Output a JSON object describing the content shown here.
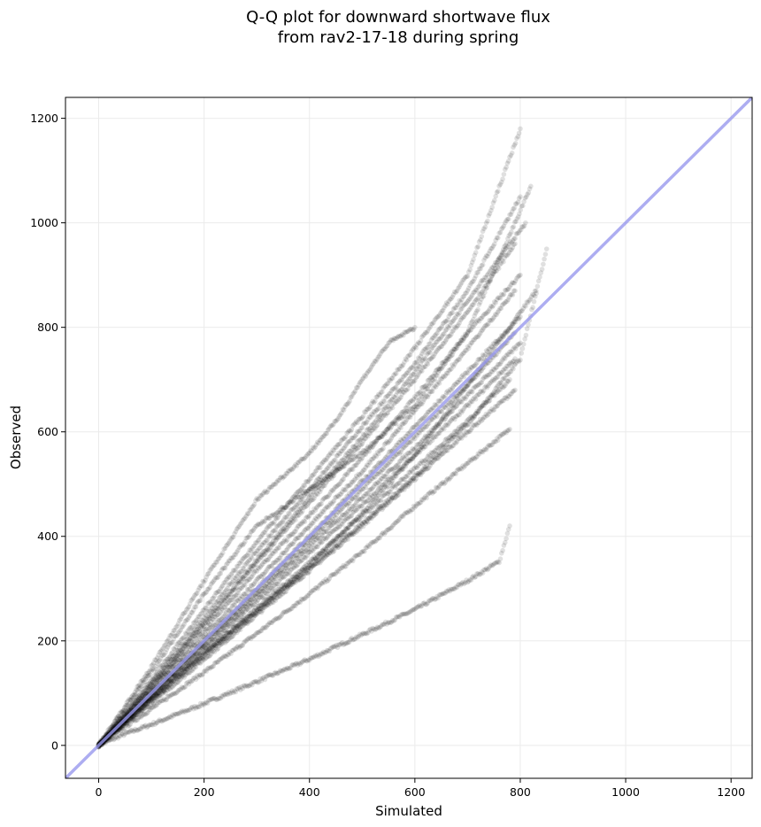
{
  "chart_data": {
    "type": "scatter",
    "title_line1": "Q-Q plot for downward shortwave flux",
    "title_line2": "from rav2-17-18 during spring",
    "xlabel": "Simulated",
    "ylabel": "Observed",
    "xlim": [
      -63,
      1240
    ],
    "ylim": [
      -63,
      1240
    ],
    "xticks": [
      0,
      200,
      400,
      600,
      800,
      1000,
      1200
    ],
    "yticks": [
      0,
      200,
      400,
      600,
      800,
      1000,
      1200
    ],
    "grid": true,
    "point_color": "#000000",
    "point_opacity": 0.12,
    "reference_line": {
      "from": [
        -63,
        -63
      ],
      "to": [
        1240,
        1240
      ],
      "color": "#9999ee"
    },
    "series": [
      {
        "values": [
          [
            0,
            0
          ],
          [
            50,
            22
          ],
          [
            100,
            40
          ],
          [
            200,
            80
          ],
          [
            300,
            122
          ],
          [
            400,
            165
          ],
          [
            500,
            212
          ],
          [
            600,
            260
          ],
          [
            700,
            315
          ],
          [
            760,
            352
          ],
          [
            780,
            420
          ]
        ]
      },
      {
        "values": [
          [
            0,
            0
          ],
          [
            100,
            70
          ],
          [
            200,
            140
          ],
          [
            300,
            214
          ],
          [
            400,
            290
          ],
          [
            500,
            370
          ],
          [
            600,
            458
          ],
          [
            700,
            540
          ],
          [
            780,
            605
          ]
        ]
      },
      {
        "values": [
          [
            0,
            0
          ],
          [
            100,
            80
          ],
          [
            200,
            165
          ],
          [
            300,
            250
          ],
          [
            400,
            335
          ],
          [
            500,
            420
          ],
          [
            600,
            510
          ],
          [
            700,
            600
          ],
          [
            790,
            680
          ]
        ]
      },
      {
        "values": [
          [
            0,
            0
          ],
          [
            100,
            85
          ],
          [
            200,
            175
          ],
          [
            300,
            262
          ],
          [
            400,
            350
          ],
          [
            500,
            440
          ],
          [
            600,
            530
          ],
          [
            700,
            620
          ],
          [
            780,
            700
          ]
        ]
      },
      {
        "values": [
          [
            0,
            0
          ],
          [
            100,
            90
          ],
          [
            200,
            185
          ],
          [
            300,
            275
          ],
          [
            400,
            368
          ],
          [
            500,
            460
          ],
          [
            600,
            555
          ],
          [
            700,
            650
          ],
          [
            790,
            740
          ]
        ]
      },
      {
        "values": [
          [
            0,
            0
          ],
          [
            100,
            95
          ],
          [
            200,
            190
          ],
          [
            300,
            285
          ],
          [
            400,
            380
          ],
          [
            500,
            475
          ],
          [
            600,
            570
          ],
          [
            700,
            670
          ],
          [
            800,
            770
          ]
        ]
      },
      {
        "values": [
          [
            0,
            0
          ],
          [
            100,
            98
          ],
          [
            200,
            196
          ],
          [
            300,
            292
          ],
          [
            400,
            390
          ],
          [
            500,
            490
          ],
          [
            600,
            590
          ],
          [
            700,
            690
          ],
          [
            790,
            790
          ]
        ]
      },
      {
        "values": [
          [
            0,
            0
          ],
          [
            100,
            100
          ],
          [
            200,
            200
          ],
          [
            300,
            300
          ],
          [
            400,
            400
          ],
          [
            500,
            505
          ],
          [
            600,
            610
          ],
          [
            700,
            715
          ],
          [
            800,
            820
          ]
        ]
      },
      {
        "values": [
          [
            0,
            0
          ],
          [
            100,
            105
          ],
          [
            200,
            210
          ],
          [
            300,
            315
          ],
          [
            400,
            420
          ],
          [
            500,
            525
          ],
          [
            600,
            640
          ],
          [
            700,
            760
          ],
          [
            790,
            870
          ]
        ]
      },
      {
        "values": [
          [
            0,
            0
          ],
          [
            100,
            108
          ],
          [
            200,
            220
          ],
          [
            300,
            335
          ],
          [
            400,
            440
          ],
          [
            500,
            550
          ],
          [
            600,
            665
          ],
          [
            700,
            790
          ],
          [
            800,
            900
          ]
        ]
      },
      {
        "values": [
          [
            0,
            0
          ],
          [
            100,
            112
          ],
          [
            200,
            230
          ],
          [
            300,
            350
          ],
          [
            400,
            465
          ],
          [
            500,
            580
          ],
          [
            600,
            700
          ],
          [
            700,
            830
          ],
          [
            790,
            960
          ]
        ]
      },
      {
        "values": [
          [
            0,
            0
          ],
          [
            100,
            118
          ],
          [
            200,
            245
          ],
          [
            300,
            372
          ],
          [
            400,
            490
          ],
          [
            500,
            610
          ],
          [
            600,
            730
          ],
          [
            700,
            870
          ],
          [
            800,
            1050
          ]
        ]
      },
      {
        "values": [
          [
            0,
            0
          ],
          [
            100,
            125
          ],
          [
            200,
            260
          ],
          [
            300,
            390
          ],
          [
            400,
            510
          ],
          [
            500,
            630
          ],
          [
            600,
            760
          ],
          [
            700,
            900
          ],
          [
            800,
            1180
          ]
        ]
      },
      {
        "values": [
          [
            0,
            0
          ],
          [
            100,
            150
          ],
          [
            200,
            315
          ],
          [
            300,
            470
          ],
          [
            400,
            560
          ],
          [
            450,
            620
          ],
          [
            500,
            700
          ],
          [
            550,
            770
          ],
          [
            600,
            800
          ]
        ]
      },
      {
        "values": [
          [
            0,
            0
          ],
          [
            100,
            140
          ],
          [
            200,
            290
          ],
          [
            300,
            420
          ],
          [
            400,
            490
          ],
          [
            500,
            560
          ],
          [
            600,
            650
          ],
          [
            700,
            790
          ],
          [
            820,
            1070
          ]
        ]
      },
      {
        "values": [
          [
            0,
            0
          ],
          [
            100,
            92
          ],
          [
            200,
            178
          ],
          [
            300,
            258
          ],
          [
            400,
            340
          ],
          [
            500,
            425
          ],
          [
            600,
            515
          ],
          [
            700,
            615
          ],
          [
            800,
            740
          ],
          [
            850,
            950
          ]
        ]
      },
      {
        "values": [
          [
            0,
            0
          ],
          [
            100,
            115
          ],
          [
            200,
            235
          ],
          [
            300,
            355
          ],
          [
            400,
            475
          ],
          [
            500,
            590
          ],
          [
            600,
            715
          ],
          [
            700,
            850
          ],
          [
            810,
            1000
          ]
        ]
      },
      {
        "values": [
          [
            0,
            0
          ],
          [
            100,
            88
          ],
          [
            200,
            172
          ],
          [
            300,
            255
          ],
          [
            400,
            345
          ],
          [
            500,
            445
          ],
          [
            600,
            555
          ],
          [
            700,
            690
          ],
          [
            830,
            870
          ]
        ]
      }
    ]
  }
}
